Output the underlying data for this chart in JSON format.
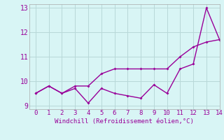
{
  "xlabel": "Windchill (Refroidissement éolien,°C)",
  "line1_x": [
    0,
    1,
    2,
    3,
    4,
    5,
    6,
    7,
    8,
    9,
    10,
    11,
    12,
    13,
    14
  ],
  "line1_y": [
    9.5,
    9.8,
    9.5,
    9.8,
    9.8,
    10.3,
    10.5,
    10.5,
    10.5,
    10.5,
    10.5,
    11.0,
    11.4,
    11.6,
    11.7
  ],
  "line2_x": [
    0,
    1,
    2,
    3,
    4,
    5,
    6,
    7,
    8,
    9,
    10,
    11,
    12,
    13,
    14
  ],
  "line2_y": [
    9.5,
    9.8,
    9.5,
    9.7,
    9.1,
    9.7,
    9.5,
    9.4,
    9.3,
    9.85,
    9.5,
    10.5,
    10.7,
    13.0,
    11.7
  ],
  "line_color": "#990099",
  "bg_color": "#d8f5f5",
  "grid_color": "#b8d8d8",
  "xlim": [
    -0.5,
    14.0
  ],
  "ylim": [
    8.85,
    13.15
  ],
  "yticks": [
    9,
    10,
    11,
    12,
    13
  ],
  "xticks": [
    0,
    1,
    2,
    3,
    4,
    5,
    6,
    7,
    8,
    9,
    10,
    11,
    12,
    13,
    14
  ]
}
